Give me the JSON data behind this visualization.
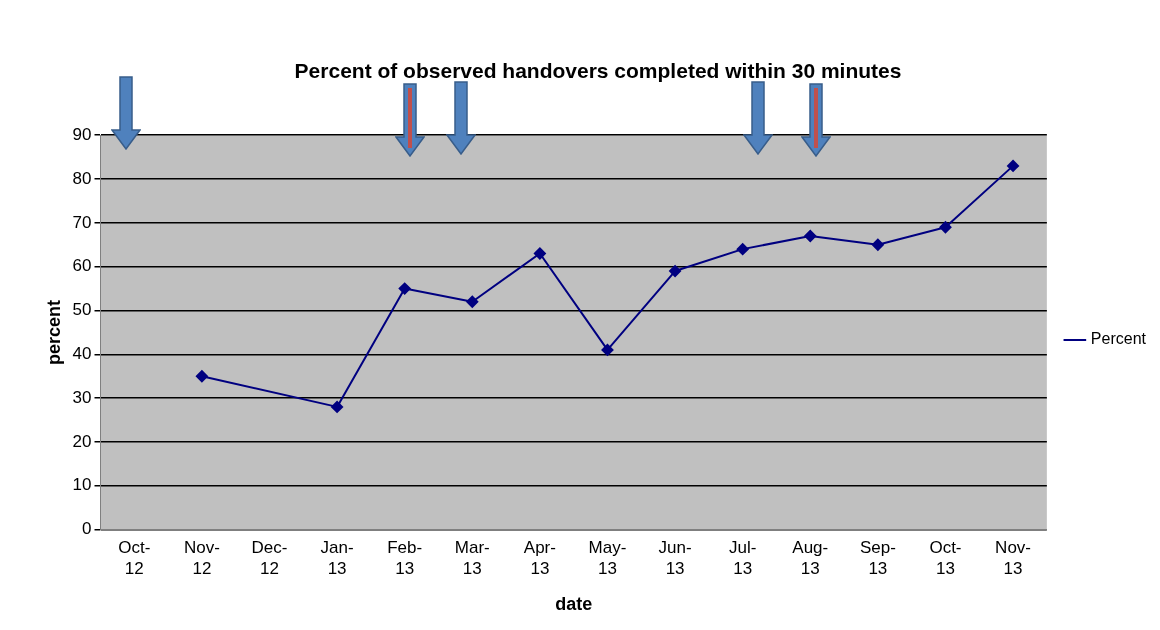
{
  "chart_data": {
    "type": "line",
    "title": "Percent of observed handovers completed within 30 minutes",
    "xlabel": "date",
    "ylabel": "percent",
    "categories": [
      "Oct-12",
      "Nov-12",
      "Dec-12",
      "Jan-13",
      "Feb-13",
      "Mar-13",
      "Apr-13",
      "May-13",
      "Jun-13",
      "Jul-13",
      "Aug-13",
      "Sep-13",
      "Oct-13",
      "Nov-13"
    ],
    "series": [
      {
        "name": "Percent",
        "color": "#000080",
        "values": [
          null,
          35,
          null,
          28,
          55,
          52,
          63,
          41,
          59,
          64,
          67,
          65,
          69,
          83
        ]
      }
    ],
    "ylim": [
      0,
      90
    ],
    "yticks": [
      0,
      10,
      20,
      30,
      40,
      50,
      60,
      70,
      80,
      90
    ],
    "grid": "y",
    "legend": "right",
    "marker": "diamond",
    "line_style": "solid"
  }
}
